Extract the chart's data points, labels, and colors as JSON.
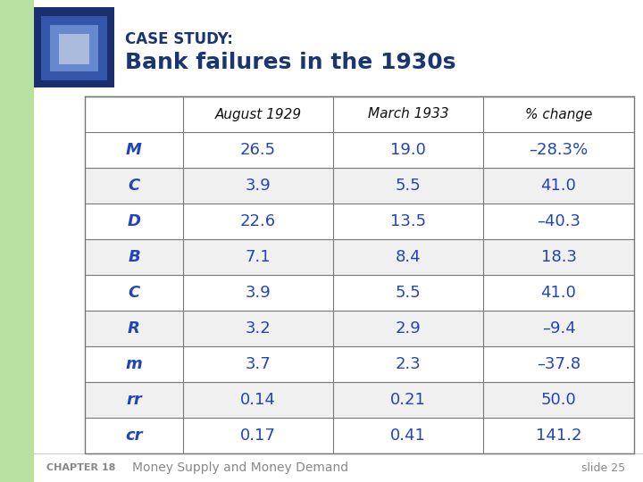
{
  "title_line1": "CASE STUDY:",
  "title_line2": "Bank failures in the 1930s",
  "header_row": [
    "",
    "August 1929",
    "March 1933",
    "% change"
  ],
  "rows": [
    [
      "M",
      "26.5",
      "19.0",
      "–28.3%"
    ],
    [
      "C",
      "3.9",
      "5.5",
      "41.0"
    ],
    [
      "D",
      "22.6",
      "13.5",
      "–40.3"
    ],
    [
      "B",
      "7.1",
      "8.4",
      "18.3"
    ],
    [
      "C",
      "3.9",
      "5.5",
      "41.0"
    ],
    [
      "R",
      "3.2",
      "2.9",
      "–9.4"
    ],
    [
      "m",
      "3.7",
      "2.3",
      "–37.8"
    ],
    [
      "rr",
      "0.14",
      "0.21",
      "50.0"
    ],
    [
      "cr",
      "0.17",
      "0.41",
      "141.2"
    ]
  ],
  "slide_bg": "#ffffff",
  "left_strip_color": "#b8e0a0",
  "blue_dark": "#1a3570",
  "blue_mid": "#1a3570",
  "blue_text": "#2244bb",
  "footer_chapter": "CHAPTER 18",
  "footer_text": "Money Supply and Money Demand",
  "footer_slide": "slide 25",
  "footer_color": "#888888"
}
